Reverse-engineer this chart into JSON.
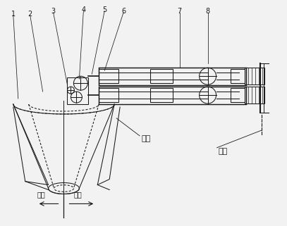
{
  "bg_color": "#f2f2f2",
  "line_color": "#1a1a1a",
  "labels": {
    "liangcang": "料仓",
    "jiajia": "机架",
    "guanmen": "关门",
    "kaimen": "开门"
  },
  "part_labels": [
    "1",
    "2",
    "3",
    "4",
    "5",
    "6",
    "7",
    "8"
  ],
  "font_size": 7,
  "lw": 0.75
}
